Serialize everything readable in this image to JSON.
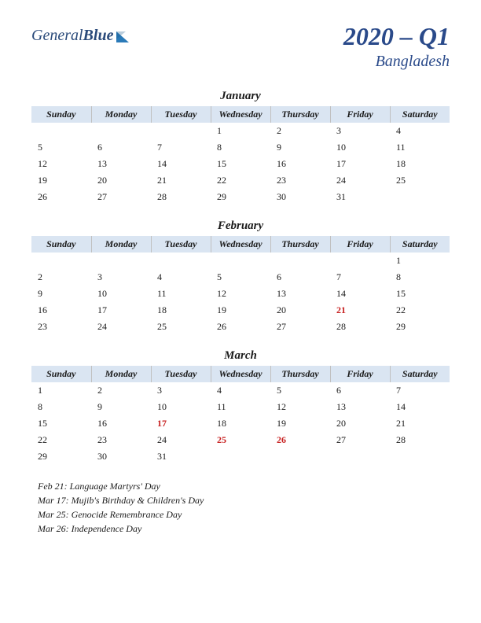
{
  "logo": {
    "text1": "General",
    "text2": "Blue"
  },
  "title": {
    "main": "2020 – Q1",
    "sub": "Bangladesh"
  },
  "weekdays": [
    "Sunday",
    "Monday",
    "Tuesday",
    "Wednesday",
    "Thursday",
    "Friday",
    "Saturday"
  ],
  "header_bg": "#dae5f2",
  "title_color": "#2a4a8a",
  "holiday_color": "#c72020",
  "months": [
    {
      "name": "January",
      "weeks": [
        [
          "",
          "",
          "",
          "1",
          "2",
          "3",
          "4"
        ],
        [
          "5",
          "6",
          "7",
          "8",
          "9",
          "10",
          "11"
        ],
        [
          "12",
          "13",
          "14",
          "15",
          "16",
          "17",
          "18"
        ],
        [
          "19",
          "20",
          "21",
          "22",
          "23",
          "24",
          "25"
        ],
        [
          "26",
          "27",
          "28",
          "29",
          "30",
          "31",
          ""
        ]
      ],
      "holidays": []
    },
    {
      "name": "February",
      "weeks": [
        [
          "",
          "",
          "",
          "",
          "",
          "",
          "1"
        ],
        [
          "2",
          "3",
          "4",
          "5",
          "6",
          "7",
          "8"
        ],
        [
          "9",
          "10",
          "11",
          "12",
          "13",
          "14",
          "15"
        ],
        [
          "16",
          "17",
          "18",
          "19",
          "20",
          "21",
          "22"
        ],
        [
          "23",
          "24",
          "25",
          "26",
          "27",
          "28",
          "29"
        ]
      ],
      "holidays": [
        "21"
      ]
    },
    {
      "name": "March",
      "weeks": [
        [
          "1",
          "2",
          "3",
          "4",
          "5",
          "6",
          "7"
        ],
        [
          "8",
          "9",
          "10",
          "11",
          "12",
          "13",
          "14"
        ],
        [
          "15",
          "16",
          "17",
          "18",
          "19",
          "20",
          "21"
        ],
        [
          "22",
          "23",
          "24",
          "25",
          "26",
          "27",
          "28"
        ],
        [
          "29",
          "30",
          "31",
          "",
          "",
          "",
          ""
        ]
      ],
      "holidays": [
        "17",
        "25",
        "26"
      ]
    }
  ],
  "holiday_list": [
    "Feb 21: Language Martyrs' Day",
    "Mar 17: Mujib's Birthday & Children's Day",
    "Mar 25: Genocide Remembrance Day",
    "Mar 26: Independence Day"
  ]
}
